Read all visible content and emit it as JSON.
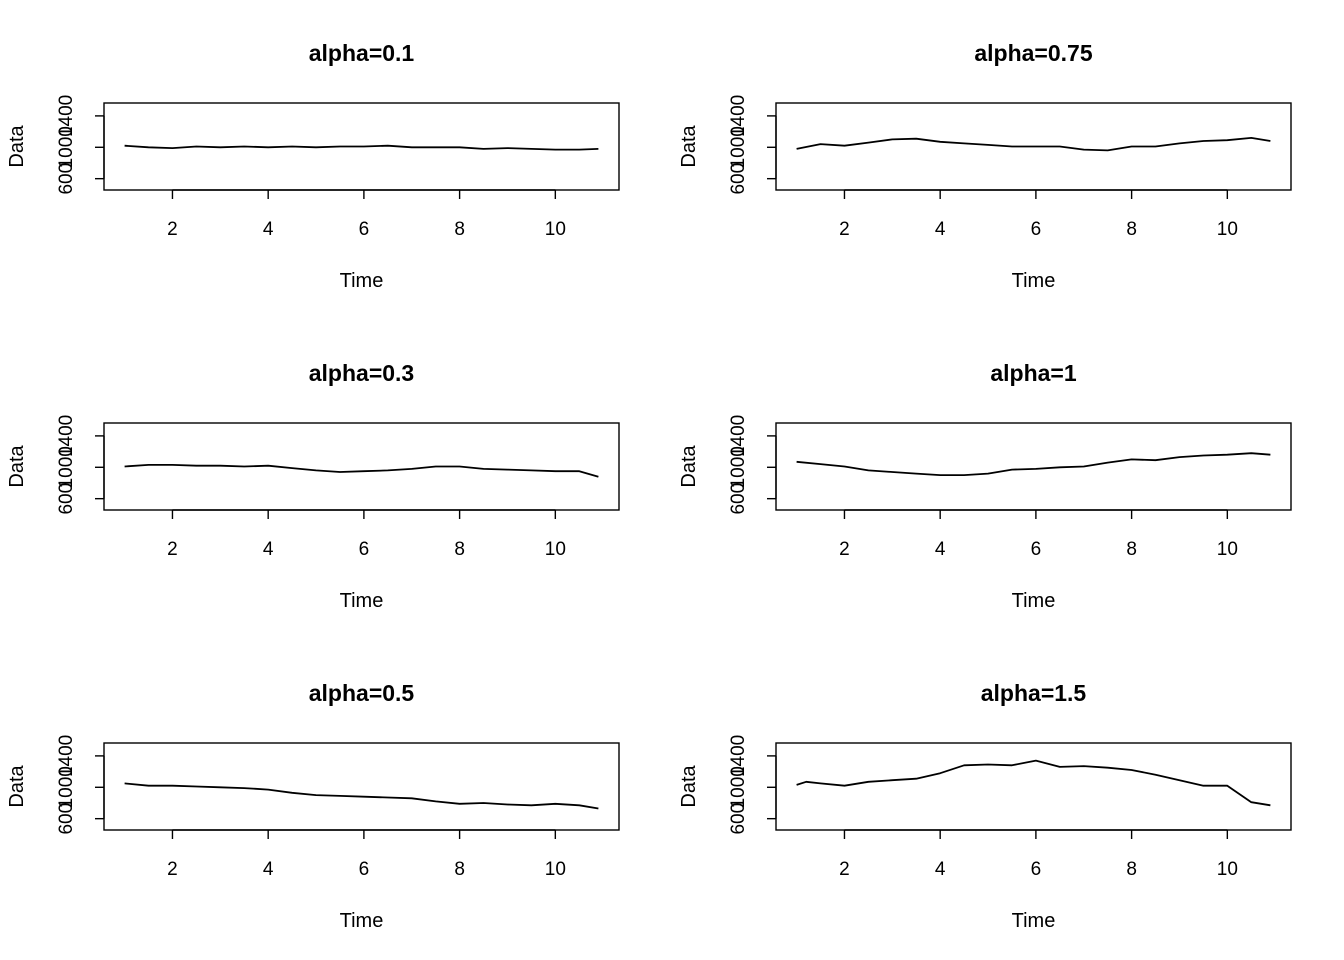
{
  "chart_data": [
    {
      "type": "line",
      "title": "alpha=0.1",
      "xlabel": "Time",
      "ylabel": "Data",
      "xlim": [
        1,
        10.9
      ],
      "ylim": [
        500,
        1520
      ],
      "xticks": [
        2,
        4,
        6,
        8,
        10
      ],
      "yticks": [
        600,
        1000,
        1400
      ],
      "x": [
        1.0,
        1.5,
        2.0,
        2.5,
        3.0,
        3.5,
        4.0,
        4.5,
        5.0,
        5.5,
        6.0,
        6.5,
        7.0,
        7.5,
        8.0,
        8.5,
        9.0,
        9.5,
        10.0,
        10.5,
        10.9
      ],
      "y": [
        1020,
        1000,
        990,
        1010,
        1000,
        1010,
        1000,
        1010,
        1000,
        1010,
        1010,
        1020,
        1000,
        1000,
        1000,
        980,
        990,
        980,
        970,
        970,
        980
      ]
    },
    {
      "type": "line",
      "title": "alpha=0.75",
      "xlabel": "Time",
      "ylabel": "Data",
      "xlim": [
        1,
        10.9
      ],
      "ylim": [
        500,
        1520
      ],
      "xticks": [
        2,
        4,
        6,
        8,
        10
      ],
      "yticks": [
        600,
        1000,
        1400
      ],
      "x": [
        1.0,
        1.5,
        2.0,
        2.5,
        3.0,
        3.5,
        4.0,
        4.5,
        5.0,
        5.5,
        6.0,
        6.5,
        7.0,
        7.5,
        8.0,
        8.5,
        9.0,
        9.5,
        10.0,
        10.5,
        10.9
      ],
      "y": [
        980,
        1040,
        1020,
        1060,
        1100,
        1110,
        1070,
        1050,
        1030,
        1010,
        1010,
        1010,
        970,
        960,
        1010,
        1010,
        1050,
        1080,
        1090,
        1120,
        1080
      ]
    },
    {
      "type": "line",
      "title": "alpha=0.3",
      "xlabel": "Time",
      "ylabel": "Data",
      "xlim": [
        1,
        10.9
      ],
      "ylim": [
        500,
        1520
      ],
      "xticks": [
        2,
        4,
        6,
        8,
        10
      ],
      "yticks": [
        600,
        1000,
        1400
      ],
      "x": [
        1.0,
        1.5,
        2.0,
        2.5,
        3.0,
        3.5,
        4.0,
        4.5,
        5.0,
        5.5,
        6.0,
        6.5,
        7.0,
        7.5,
        8.0,
        8.5,
        9.0,
        9.5,
        10.0,
        10.5,
        10.9
      ],
      "y": [
        1010,
        1030,
        1030,
        1020,
        1020,
        1010,
        1020,
        990,
        960,
        940,
        950,
        960,
        980,
        1010,
        1010,
        980,
        970,
        960,
        950,
        950,
        880
      ]
    },
    {
      "type": "line",
      "title": "alpha=1",
      "xlabel": "Time",
      "ylabel": "Data",
      "xlim": [
        1,
        10.9
      ],
      "ylim": [
        500,
        1520
      ],
      "xticks": [
        2,
        4,
        6,
        8,
        10
      ],
      "yticks": [
        600,
        1000,
        1400
      ],
      "x": [
        1.0,
        1.5,
        2.0,
        2.5,
        3.0,
        3.5,
        4.0,
        4.5,
        5.0,
        5.5,
        6.0,
        6.5,
        7.0,
        7.5,
        8.0,
        8.5,
        9.0,
        9.5,
        10.0,
        10.5,
        10.9
      ],
      "y": [
        1070,
        1040,
        1010,
        960,
        940,
        920,
        900,
        900,
        920,
        970,
        980,
        1000,
        1010,
        1060,
        1100,
        1090,
        1130,
        1150,
        1160,
        1180,
        1160
      ]
    },
    {
      "type": "line",
      "title": "alpha=0.5",
      "xlabel": "Time",
      "ylabel": "Data",
      "xlim": [
        1,
        10.9
      ],
      "ylim": [
        500,
        1520
      ],
      "xticks": [
        2,
        4,
        6,
        8,
        10
      ],
      "yticks": [
        600,
        1000,
        1400
      ],
      "x": [
        1.0,
        1.5,
        2.0,
        2.5,
        3.0,
        3.5,
        4.0,
        4.5,
        5.0,
        5.5,
        6.0,
        6.5,
        7.0,
        7.5,
        8.0,
        8.5,
        9.0,
        9.5,
        10.0,
        10.5,
        10.9
      ],
      "y": [
        1050,
        1020,
        1020,
        1010,
        1000,
        990,
        970,
        930,
        900,
        890,
        880,
        870,
        860,
        820,
        790,
        800,
        780,
        770,
        790,
        770,
        730
      ]
    },
    {
      "type": "line",
      "title": "alpha=1.5",
      "xlabel": "Time",
      "ylabel": "Data",
      "xlim": [
        1,
        10.9
      ],
      "ylim": [
        500,
        1520
      ],
      "xticks": [
        2,
        4,
        6,
        8,
        10
      ],
      "yticks": [
        600,
        1000,
        1400
      ],
      "x": [
        1.0,
        1.2,
        1.5,
        2.0,
        2.5,
        3.0,
        3.5,
        4.0,
        4.5,
        5.0,
        5.5,
        6.0,
        6.5,
        7.0,
        7.5,
        8.0,
        8.5,
        9.0,
        9.5,
        10.0,
        10.5,
        10.9
      ],
      "y": [
        1030,
        1070,
        1050,
        1020,
        1070,
        1090,
        1110,
        1180,
        1280,
        1290,
        1280,
        1340,
        1260,
        1270,
        1250,
        1220,
        1160,
        1090,
        1020,
        1020,
        810,
        770
      ]
    }
  ]
}
